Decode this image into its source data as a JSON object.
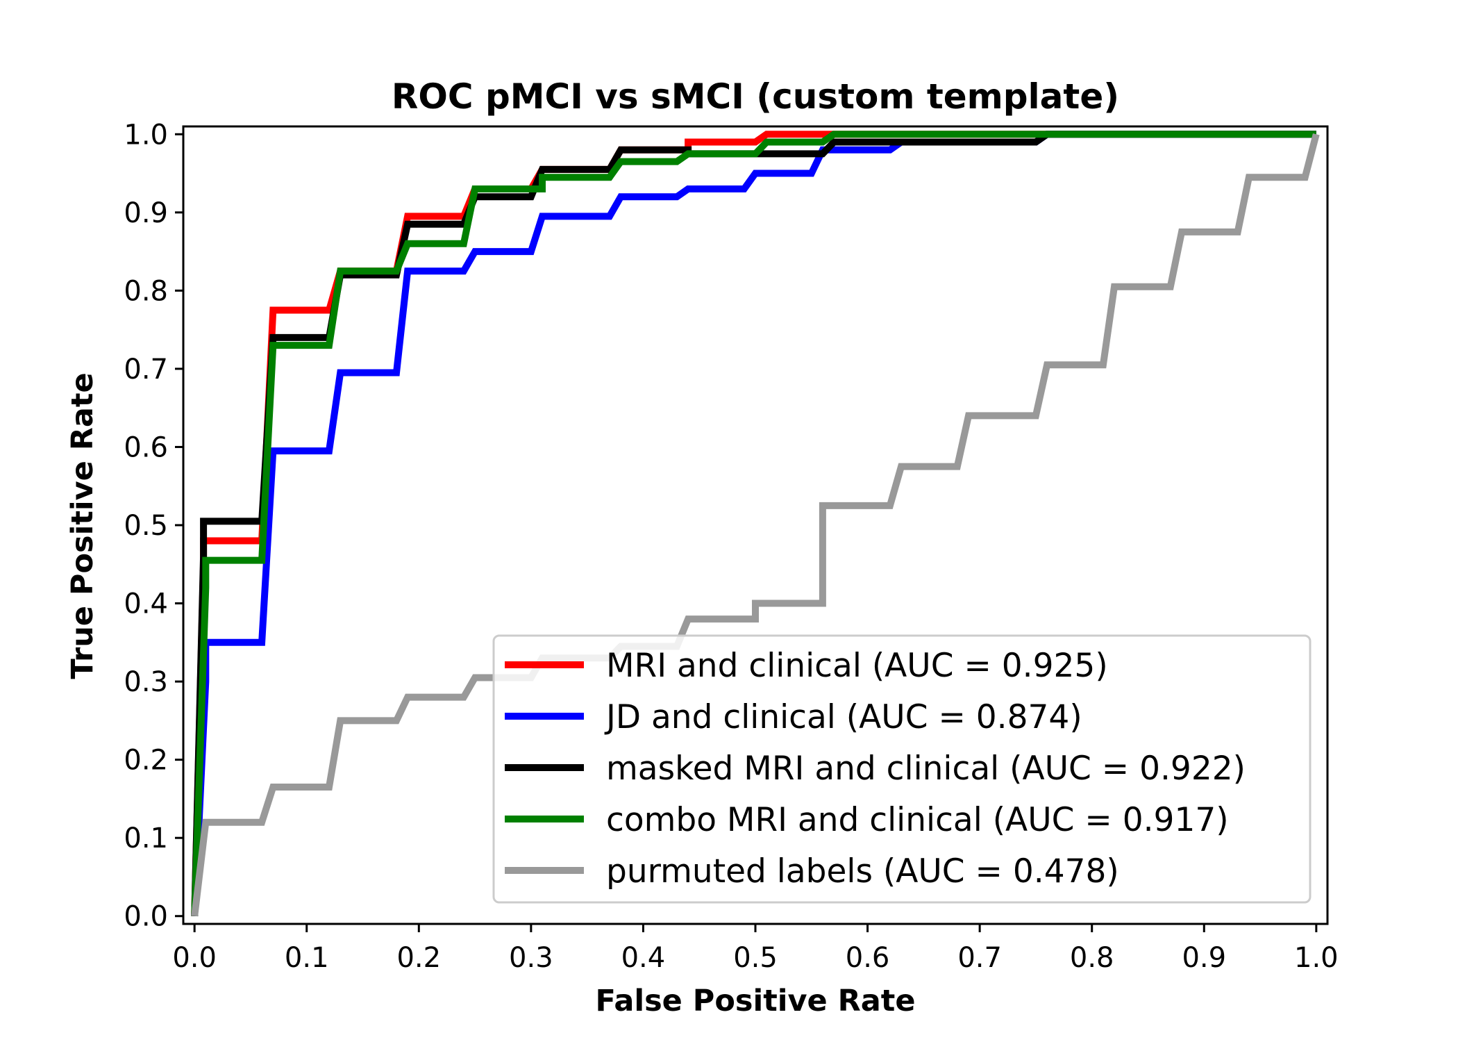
{
  "chart_data": {
    "type": "line",
    "title": "ROC pMCI vs sMCI (custom template)",
    "xlabel": "False Positive Rate",
    "ylabel": "True Positive Rate",
    "xlim": [
      -0.01,
      1.01
    ],
    "ylim": [
      -0.01,
      1.01
    ],
    "xticks": [
      "0.0",
      "0.1",
      "0.2",
      "0.3",
      "0.4",
      "0.5",
      "0.6",
      "0.7",
      "0.8",
      "0.9",
      "1.0"
    ],
    "yticks": [
      "0.0",
      "0.1",
      "0.2",
      "0.3",
      "0.4",
      "0.5",
      "0.6",
      "0.7",
      "0.8",
      "0.9",
      "1.0"
    ],
    "grid": false,
    "legend_position": "lower-right",
    "series": [
      {
        "name": "MRI and clinical (AUC = 0.925)",
        "color": "#ff0000",
        "x": [
          0.0,
          0.008,
          0.008,
          0.06,
          0.07,
          0.12,
          0.13,
          0.18,
          0.19,
          0.24,
          0.25,
          0.3,
          0.31,
          0.37,
          0.38,
          0.44,
          0.44,
          0.5,
          0.51,
          0.56,
          0.57,
          1.0
        ],
        "y": [
          0.0,
          0.45,
          0.48,
          0.48,
          0.775,
          0.775,
          0.825,
          0.825,
          0.895,
          0.895,
          0.93,
          0.93,
          0.955,
          0.955,
          0.98,
          0.98,
          0.99,
          0.99,
          1.0,
          1.0,
          1.0,
          1.0
        ]
      },
      {
        "name": "JD and clinical (AUC = 0.874)",
        "color": "#0000ff",
        "x": [
          0.0,
          0.01,
          0.01,
          0.06,
          0.07,
          0.12,
          0.13,
          0.18,
          0.19,
          0.24,
          0.25,
          0.3,
          0.31,
          0.37,
          0.38,
          0.43,
          0.44,
          0.49,
          0.5,
          0.55,
          0.56,
          0.62,
          0.63,
          0.75,
          0.76,
          1.0
        ],
        "y": [
          0.0,
          0.3,
          0.35,
          0.35,
          0.595,
          0.595,
          0.695,
          0.695,
          0.825,
          0.825,
          0.85,
          0.85,
          0.895,
          0.895,
          0.92,
          0.92,
          0.93,
          0.93,
          0.95,
          0.95,
          0.98,
          0.98,
          0.99,
          0.99,
          1.0,
          1.0
        ]
      },
      {
        "name": "masked MRI and clinical (AUC = 0.922)",
        "color": "#000000",
        "x": [
          0.0,
          0.008,
          0.008,
          0.06,
          0.07,
          0.12,
          0.13,
          0.18,
          0.19,
          0.24,
          0.25,
          0.3,
          0.31,
          0.37,
          0.38,
          0.44,
          0.44,
          0.56,
          0.57,
          0.75,
          0.76,
          1.0
        ],
        "y": [
          0.0,
          0.46,
          0.505,
          0.505,
          0.74,
          0.74,
          0.82,
          0.82,
          0.885,
          0.885,
          0.92,
          0.92,
          0.955,
          0.955,
          0.98,
          0.98,
          0.975,
          0.975,
          0.99,
          0.99,
          1.0,
          1.0
        ]
      },
      {
        "name": "combo MRI and clinical (AUC = 0.917)",
        "color": "#008000",
        "x": [
          0.0,
          0.01,
          0.01,
          0.06,
          0.07,
          0.12,
          0.13,
          0.18,
          0.19,
          0.24,
          0.25,
          0.31,
          0.31,
          0.37,
          0.38,
          0.43,
          0.44,
          0.5,
          0.51,
          0.56,
          0.57,
          1.0
        ],
        "y": [
          0.0,
          0.42,
          0.455,
          0.455,
          0.73,
          0.73,
          0.825,
          0.825,
          0.86,
          0.86,
          0.93,
          0.93,
          0.945,
          0.945,
          0.965,
          0.965,
          0.975,
          0.975,
          0.99,
          0.99,
          1.0,
          1.0
        ]
      },
      {
        "name": "purmuted labels (AUC = 0.478)",
        "color": "#999999",
        "x": [
          0.0,
          0.01,
          0.06,
          0.07,
          0.12,
          0.13,
          0.18,
          0.19,
          0.24,
          0.25,
          0.3,
          0.31,
          0.37,
          0.38,
          0.43,
          0.44,
          0.5,
          0.5,
          0.56,
          0.56,
          0.62,
          0.63,
          0.68,
          0.69,
          0.75,
          0.76,
          0.81,
          0.82,
          0.87,
          0.88,
          0.93,
          0.94,
          0.99,
          1.0
        ],
        "y": [
          0.0,
          0.12,
          0.12,
          0.165,
          0.165,
          0.25,
          0.25,
          0.28,
          0.28,
          0.305,
          0.305,
          0.33,
          0.33,
          0.345,
          0.345,
          0.38,
          0.38,
          0.4,
          0.4,
          0.525,
          0.525,
          0.575,
          0.575,
          0.64,
          0.64,
          0.705,
          0.705,
          0.805,
          0.805,
          0.875,
          0.875,
          0.945,
          0.945,
          1.0
        ]
      }
    ]
  }
}
